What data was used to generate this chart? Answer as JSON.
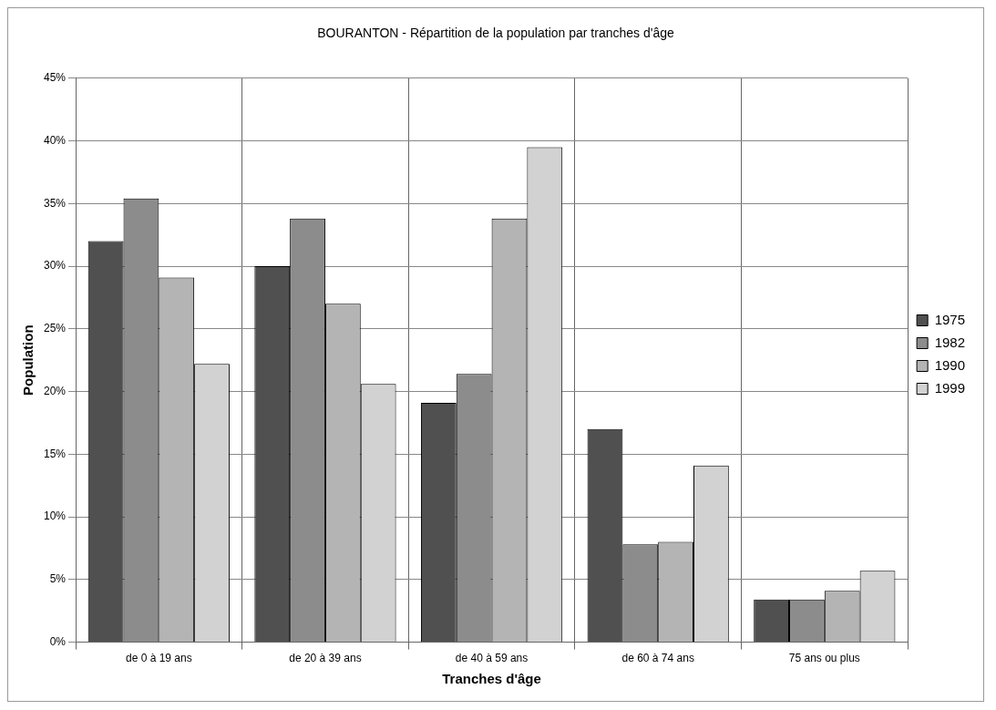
{
  "chart_data": {
    "type": "bar",
    "title": "BOURANTON - Répartition de la population par tranches d'âge",
    "xlabel": "Tranches d'âge",
    "ylabel": "Population",
    "categories": [
      "de 0 à 19 ans",
      "de 20 à 39 ans",
      "de 40 à 59 ans",
      "de 60 à 74 ans",
      "75 ans ou plus"
    ],
    "series": [
      {
        "name": "1975",
        "color": "#505050",
        "values": [
          32,
          30,
          19.1,
          17,
          3.4
        ]
      },
      {
        "name": "1982",
        "color": "#8c8c8c",
        "values": [
          35.4,
          33.8,
          21.4,
          7.8,
          3.4
        ]
      },
      {
        "name": "1990",
        "color": "#b4b4b4",
        "values": [
          29.1,
          27,
          33.8,
          8,
          4.1
        ]
      },
      {
        "name": "1999",
        "color": "#d2d2d2",
        "values": [
          22.2,
          20.6,
          39.5,
          14.1,
          5.7
        ]
      }
    ],
    "ylim": [
      0,
      45
    ],
    "yticks": [
      {
        "value": 0,
        "label": "0%"
      },
      {
        "value": 5,
        "label": "5%"
      },
      {
        "value": 10,
        "label": "10%"
      },
      {
        "value": 15,
        "label": "15%"
      },
      {
        "value": 20,
        "label": "20%"
      },
      {
        "value": 25,
        "label": "25%"
      },
      {
        "value": 30,
        "label": "30%"
      },
      {
        "value": 35,
        "label": "35%"
      },
      {
        "value": 40,
        "label": "40%"
      },
      {
        "value": 45,
        "label": "45%"
      }
    ],
    "grid": true,
    "legend": "right"
  }
}
